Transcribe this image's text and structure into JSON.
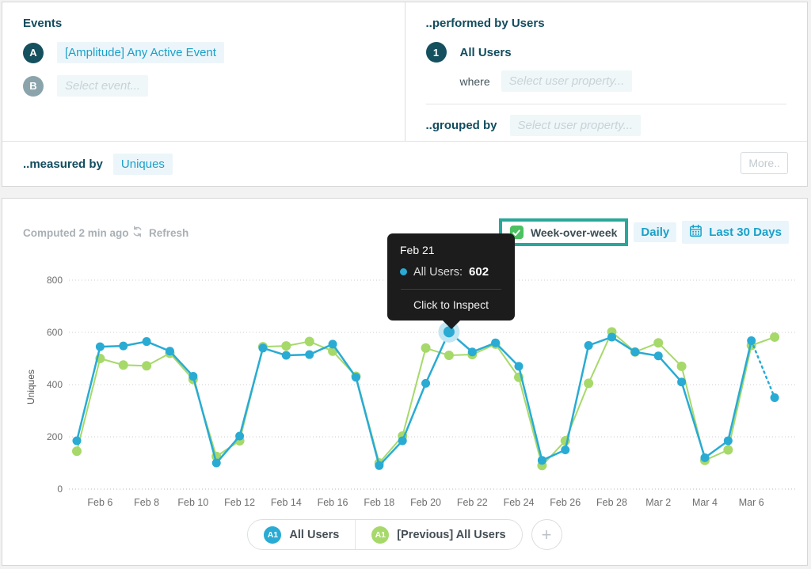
{
  "colors": {
    "brand_dark_teal": "#114c5e",
    "accent_blue": "#1aa0c9",
    "chip_bg": "#ecf6fa",
    "chart_blue": "#29abd4",
    "chart_green": "#a6d96a",
    "checkbox_green": "#4bc161",
    "annotation_teal": "#29a79b",
    "tooltip_bg": "#1c1c1c"
  },
  "top": {
    "events": {
      "title": "Events",
      "rows": [
        {
          "badge": "A",
          "label": "[Amplitude] Any Active Event"
        },
        {
          "badge": "B",
          "label": "Select event..."
        }
      ]
    },
    "performed": {
      "title": "..performed by Users",
      "badge": "1",
      "user_segment": "All Users",
      "where_label": "where",
      "where_placeholder": "Select user property..."
    },
    "grouped": {
      "title": "..grouped by",
      "placeholder": "Select user property..."
    },
    "measured": {
      "title": "..measured by",
      "value": "Uniques",
      "more_label": "More.."
    }
  },
  "chart": {
    "header": {
      "computed": "Computed 2 min ago",
      "refresh_label": "Refresh"
    },
    "controls": {
      "week_over_week_label": "Week-over-week",
      "week_over_week_checked": true,
      "daily_label": "Daily",
      "range_label": "Last 30 Days"
    },
    "tooltip": {
      "date": "Feb 21",
      "series_label": "All Users:",
      "value": "602",
      "action": "Click to Inspect"
    },
    "legend": {
      "items": [
        {
          "badge": "A1",
          "label": "All Users"
        },
        {
          "badge": "A1",
          "label": "[Previous] All Users"
        }
      ],
      "add_label": "+"
    }
  },
  "chart_data": {
    "type": "line",
    "title": "",
    "xlabel": "",
    "ylabel": "Uniques",
    "ylim": [
      0,
      800
    ],
    "y_ticks": [
      0,
      200,
      400,
      600,
      800
    ],
    "grid": "dotted-horizontal",
    "legend_position": "bottom",
    "x": [
      "Feb 5",
      "Feb 6",
      "Feb 7",
      "Feb 8",
      "Feb 9",
      "Feb 10",
      "Feb 11",
      "Feb 12",
      "Feb 13",
      "Feb 14",
      "Feb 15",
      "Feb 16",
      "Feb 17",
      "Feb 18",
      "Feb 19",
      "Feb 20",
      "Feb 21",
      "Feb 22",
      "Feb 23",
      "Feb 24",
      "Feb 25",
      "Feb 26",
      "Feb 27",
      "Feb 28",
      "Mar 1",
      "Mar 2",
      "Mar 3",
      "Mar 4",
      "Mar 5",
      "Mar 6",
      "Mar 7"
    ],
    "x_tick_indices": [
      1,
      3,
      5,
      7,
      9,
      11,
      13,
      15,
      17,
      19,
      21,
      23,
      25,
      27,
      29
    ],
    "x_tick_labels": [
      "Feb 6",
      "Feb 8",
      "Feb 10",
      "Feb 12",
      "Feb 14",
      "Feb 16",
      "Feb 18",
      "Feb 20",
      "Feb 22",
      "Feb 24",
      "Feb 26",
      "Feb 28",
      "Mar 2",
      "Mar 4",
      "Mar 6"
    ],
    "series": [
      {
        "name": "All Users",
        "color": "#29abd4",
        "values": [
          185,
          545,
          548,
          565,
          528,
          432,
          100,
          203,
          540,
          512,
          515,
          555,
          428,
          90,
          185,
          405,
          602,
          525,
          560,
          470,
          110,
          150,
          550,
          582,
          525,
          510,
          410,
          120,
          185,
          568,
          350
        ],
        "last_segment_dotted": true
      },
      {
        "name": "[Previous] All Users",
        "color": "#a6d96a",
        "values": [
          145,
          500,
          475,
          472,
          520,
          420,
          125,
          185,
          545,
          548,
          565,
          528,
          432,
          100,
          203,
          540,
          512,
          515,
          555,
          428,
          90,
          185,
          405,
          602,
          525,
          560,
          470,
          110,
          150,
          550,
          582
        ],
        "last_segment_dotted": false
      }
    ],
    "highlight": {
      "series": "All Users",
      "index": 16,
      "date": "Feb 21",
      "value": 602
    }
  }
}
